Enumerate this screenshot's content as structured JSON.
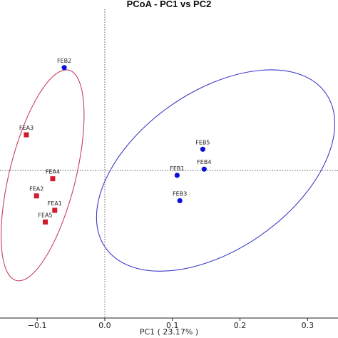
{
  "chart_data": {
    "type": "scatter",
    "title": "PCoA - PC1 vs PC2",
    "xlabel": "PC1 ( 23.17% )",
    "ylabel": "",
    "xlim": [
      -0.155,
      0.345
    ],
    "ylim": [
      -0.215,
      0.235
    ],
    "xticks": [
      -0.1,
      0,
      0.1,
      0.2,
      0.3
    ],
    "xtick_labels": [
      "−0.1",
      "0.0",
      "0.1",
      "0.2",
      "0.3"
    ],
    "grid": false,
    "reference_lines": {
      "x": 0,
      "y": 0
    },
    "series": [
      {
        "color": "#d01c2c",
        "marker": "square",
        "points": [
          {
            "label": "FEA3",
            "x": -0.116,
            "y": 0.052
          },
          {
            "label": "FEA4",
            "x": -0.077,
            "y": -0.012
          },
          {
            "label": "FEA2",
            "x": -0.101,
            "y": -0.037
          },
          {
            "label": "FEA1",
            "x": -0.074,
            "y": -0.058
          },
          {
            "label": "FEA5",
            "x": -0.088,
            "y": -0.075
          }
        ]
      },
      {
        "color": "#0a10d8",
        "marker": "circle",
        "points": [
          {
            "label": "FEB2",
            "x": -0.06,
            "y": 0.15
          },
          {
            "label": "FEB5",
            "x": 0.145,
            "y": 0.031
          },
          {
            "label": "FEB1",
            "x": 0.107,
            "y": -0.007
          },
          {
            "label": "FEB4",
            "x": 0.147,
            "y": 0.002
          },
          {
            "label": "FEB3",
            "x": 0.111,
            "y": -0.044
          }
        ]
      }
    ],
    "ellipses": [
      {
        "color": "#c8405a",
        "cx": -0.092,
        "cy": -0.007,
        "rx": 0.049,
        "ry": 0.158,
        "angle_deg": -14
      },
      {
        "color": "#3c3cc8",
        "cx": 0.164,
        "cy": 0.0,
        "rx": 0.199,
        "ry": 0.115,
        "angle_deg": 35
      }
    ]
  }
}
